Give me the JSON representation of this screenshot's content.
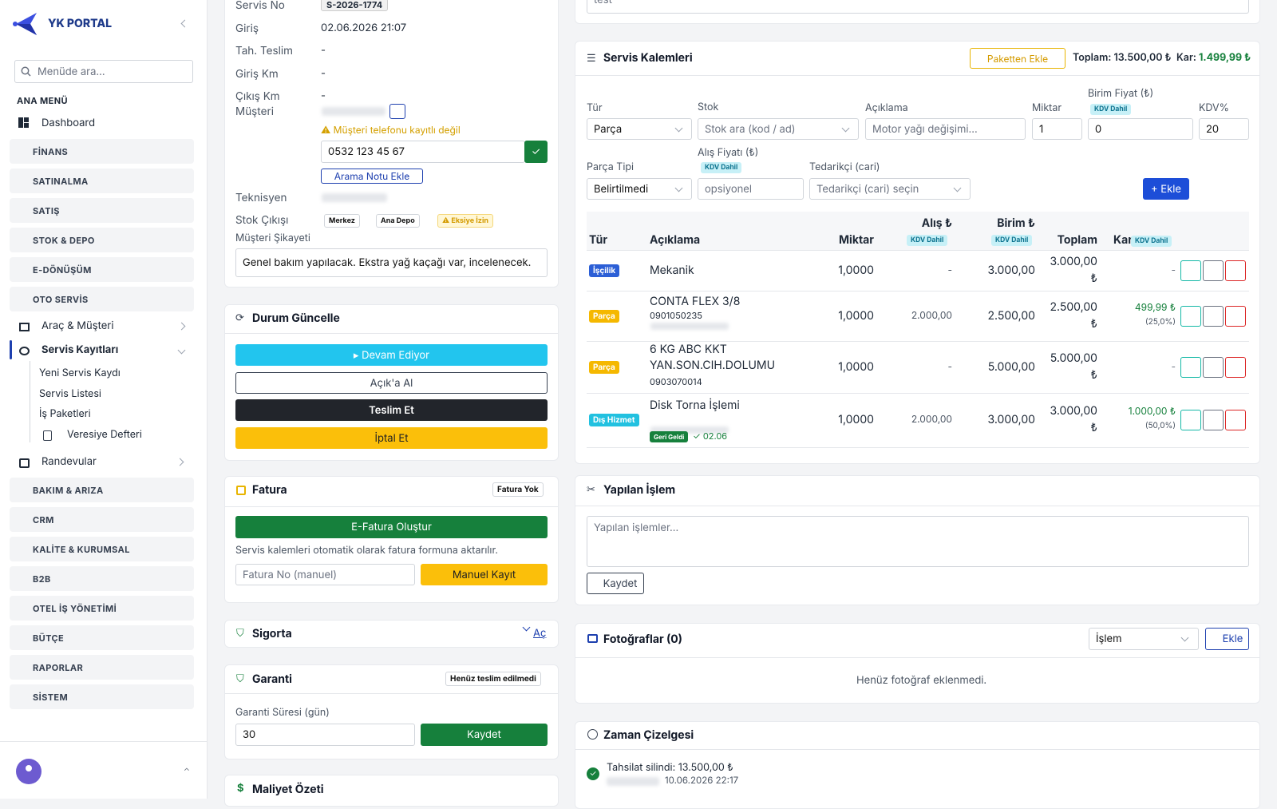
{
  "sidebar": {
    "brand": "YK PORTAL",
    "search_placeholder": "Menüde ara...",
    "section": "ANA MENÜ",
    "dashboard": "Dashboard",
    "groups": [
      "FİNANS",
      "SATINALMA",
      "SATIŞ",
      "STOK & DEPO",
      "E-DÖNÜŞÜM",
      "OTO SERVİS"
    ],
    "oto_items": [
      "Araç & Müşteri",
      "Servis Kayıtları"
    ],
    "sub_items": [
      "Yeni Servis Kaydı",
      "Servis Listesi",
      "İş Paketleri",
      "Veresiye Defteri"
    ],
    "appointments": "Randevular",
    "groups2": [
      "BAKIM & ARIZA",
      "CRM",
      "KALİTE & KURUMSAL",
      "B2B",
      "OTEL İŞ YÖNETİMİ",
      "BÜTÇE",
      "RAPORLAR",
      "SİSTEM"
    ]
  },
  "details": {
    "rows": [
      [
        "Servis No",
        "S-2026-1774"
      ],
      [
        "Giriş",
        "02.06.2026 21:07"
      ],
      [
        "Tah. Teslim",
        "-"
      ],
      [
        "Giriş Km",
        "-"
      ],
      [
        "Çıkış Km",
        "-"
      ]
    ],
    "customer_label": "Müşteri",
    "phone_warning": "⚠ Müşteri telefonu kayıtlı değil",
    "phone": "0532 123 45 67",
    "call_note": "Arama Notu Ekle",
    "technician_label": "Teknisyen",
    "stock_label": "Stok Çıkışı",
    "stock_tags": [
      "Merkez",
      "Ana Depo",
      "⚠ Eksiye İzin"
    ],
    "complaint_label": "Müşteri Şikayeti",
    "complaint": "Genel bakım yapılacak. Ekstra yağ kaçağı var, incelenecek."
  },
  "status": {
    "title": "Durum Güncelle",
    "buttons": [
      "▸ Devam Ediyor",
      "Açık'a Al",
      "Teslim Et",
      "İptal Et"
    ]
  },
  "invoice": {
    "title": "Fatura",
    "badge": "Fatura Yok",
    "create": "E-Fatura Oluştur",
    "note": "Servis kalemleri otomatik olarak fatura formuna aktarılır.",
    "placeholder": "Fatura No (manuel)",
    "manual": "Manuel Kayıt"
  },
  "insurance": {
    "title": "Sigorta",
    "open": "Aç"
  },
  "warranty": {
    "title": "Garanti",
    "badge": "Henüz teslim edilmedi",
    "label": "Garanti Süresi (gün)",
    "value": "30",
    "save": "Kaydet"
  },
  "cost": {
    "title": "Maliyet Özeti"
  },
  "top_input": "test",
  "items": {
    "title": "Servis Kalemleri",
    "package": "Paketten Ekle",
    "total": "Toplam: 13.500,00 ₺",
    "profit_label": "Kar:",
    "profit": "1.499,99 ₺",
    "form": {
      "type_label": "Tür",
      "type": "Parça",
      "stock_label": "Stok",
      "stock": "Stok ara (kod / ad)",
      "desc_label": "Açıklama",
      "desc": "Motor yağı değişimi...",
      "qty_label": "Miktar",
      "qty": "1",
      "price_label": "Birim Fiyat (₺)",
      "vat_incl": "KDV Dahil",
      "price": "0",
      "vat_label": "KDV%",
      "vat": "20",
      "part_label": "Parça Tipi",
      "part": "Belirtilmedi",
      "buy_label": "Alış Fiyatı (₺)",
      "buy": "opsiyonel",
      "supplier_label": "Tedarikçi (cari)",
      "supplier": "Tedarikçi (cari) seçin",
      "add": "+ Ekle"
    },
    "headers": [
      "Tür",
      "Açıklama",
      "Miktar",
      "Alış ₺",
      "Birim ₺",
      "Toplam",
      "Kar"
    ],
    "rows": [
      {
        "type": "İşçilik",
        "description": "Mekanik",
        "quantity": "1,0000",
        "purchase": "-",
        "unit": "3.000,00",
        "total": "3.000,00 ₺",
        "profit": "-"
      },
      {
        "type": "Parça",
        "description": "CONTA FLEX 3/8",
        "code": "0901050235",
        "quantity": "1,0000",
        "purchase": "2.000,00",
        "unit": "2.500,00",
        "total": "2.500,00 ₺",
        "profit": "499,99 ₺",
        "profit_pct": "(25,0%)"
      },
      {
        "type": "Parça",
        "description": "6 KG ABC KKT YAN.SON.CIH.DOLUMU",
        "code": "0903070014",
        "quantity": "1,0000",
        "purchase": "-",
        "unit": "5.000,00",
        "total": "5.000,00 ₺",
        "profit": "-"
      },
      {
        "type": "Dış Hizmet",
        "description": "Disk Torna İşlemi",
        "return_badge": "Geri Geldi",
        "return_date": "✓ 02.06",
        "quantity": "1,0000",
        "purchase": "2.000,00",
        "unit": "3.000,00",
        "total": "3.000,00 ₺",
        "profit": "1.000,00 ₺",
        "profit_pct": "(50,0%)"
      }
    ]
  },
  "work": {
    "title": "Yapılan İşlem",
    "placeholder": "Yapılan işlemler...",
    "save": "Kaydet"
  },
  "photos": {
    "title": "Fotoğraflar (0)",
    "select": "İşlem",
    "add": "Ekle",
    "empty": "Henüz fotoğraf eklenmedi."
  },
  "timeline": {
    "title": "Zaman Çizelgesi",
    "event": "Tahsilat silindi: 13.500,00 ₺",
    "date": "10.06.2026 22:17"
  }
}
